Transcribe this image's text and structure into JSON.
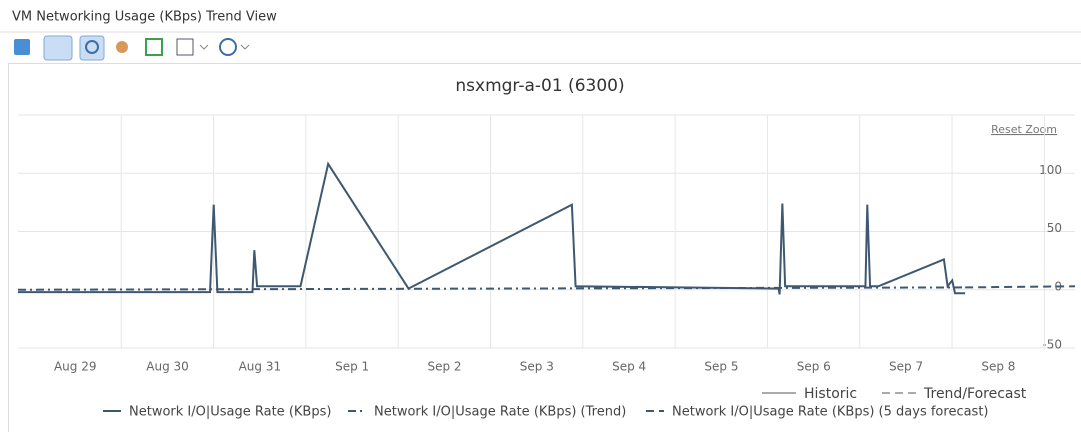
{
  "header": {
    "title": "VM Networking Usage (KBps) Trend View"
  },
  "chart_data": {
    "type": "line",
    "title": "nsxmgr-a-01 (6300)",
    "reset_zoom": "Reset Zoom",
    "xlim": [
      -0.62,
      10.83
    ],
    "xticks": [
      {
        "value": 0,
        "label": "Aug 29"
      },
      {
        "value": 1,
        "label": "Aug 30"
      },
      {
        "value": 2,
        "label": "Aug 31"
      },
      {
        "value": 3,
        "label": "Sep 1"
      },
      {
        "value": 4,
        "label": "Sep 2"
      },
      {
        "value": 5,
        "label": "Sep 3"
      },
      {
        "value": 6,
        "label": "Sep 4"
      },
      {
        "value": 7,
        "label": "Sep 5"
      },
      {
        "value": 8,
        "label": "Sep 6"
      },
      {
        "value": 9,
        "label": "Sep 7"
      },
      {
        "value": 10,
        "label": "Sep 8"
      }
    ],
    "ylim": [
      -50,
      150
    ],
    "yticks": [
      -50,
      0,
      50,
      100
    ],
    "grid": true,
    "style_legend": [
      {
        "name": "Historic",
        "dash": "solid"
      },
      {
        "name": "Trend/Forecast",
        "dash": "dash"
      }
    ],
    "series": [
      {
        "name": "Network I/O|Usage Rate (KBps)",
        "color": "#3e5871",
        "dash": "solid",
        "x": [
          -0.62,
          1.46,
          1.5,
          1.54,
          1.92,
          1.94,
          1.97,
          2.44,
          2.74,
          3.61,
          5.38,
          5.42,
          7.62,
          7.63,
          7.66,
          7.69,
          8.56,
          8.58,
          8.61,
          8.7,
          9.41,
          9.45,
          9.5,
          9.53,
          9.64
        ],
        "values": [
          -2,
          -2,
          73,
          -2,
          -2,
          34,
          3,
          3,
          108,
          1,
          73,
          3,
          1,
          -4,
          74,
          3,
          3,
          73,
          3,
          3,
          26,
          3,
          8,
          -3,
          -3
        ]
      },
      {
        "name": "Network I/O|Usage Rate (KBps) (Trend)",
        "color": "#3e5871",
        "dash": "dashdot",
        "x": [
          -0.62,
          9.64
        ],
        "values": [
          0,
          2
        ]
      },
      {
        "name": "Network I/O|Usage Rate (KBps) (5 days forecast)",
        "color": "#3e5871",
        "dash": "dash",
        "x": [
          9.64,
          10.83
        ],
        "values": [
          2,
          3
        ]
      }
    ]
  }
}
